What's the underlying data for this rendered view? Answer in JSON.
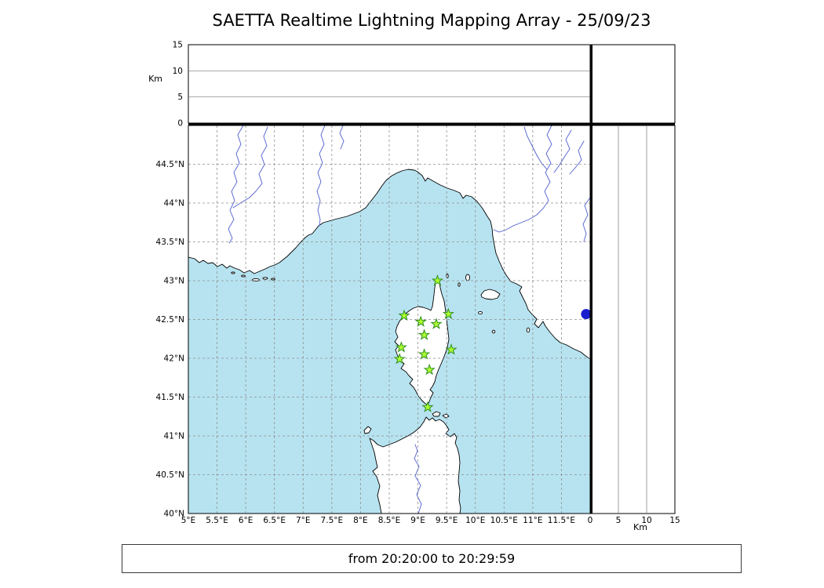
{
  "title": "SAETTA Realtime Lightning Mapping Array - 25/09/23",
  "footer": {
    "time_range": "from 20:20:00 to 20:29:59"
  },
  "axes": {
    "km_label": "Km",
    "km_max": 15,
    "km_ticks": [
      {
        "v": 0,
        "label": "0"
      },
      {
        "v": 5,
        "label": "5"
      },
      {
        "v": 10,
        "label": "10"
      },
      {
        "v": 15,
        "label": "15"
      }
    ],
    "lon_ticks": [
      {
        "v": 5,
        "label": "5°E"
      },
      {
        "v": 5.5,
        "label": "5.5°E"
      },
      {
        "v": 6,
        "label": "6°E"
      },
      {
        "v": 6.5,
        "label": "6.5°E"
      },
      {
        "v": 7,
        "label": "7°E"
      },
      {
        "v": 7.5,
        "label": "7.5°E"
      },
      {
        "v": 8,
        "label": "8°E"
      },
      {
        "v": 8.5,
        "label": "8.5°E"
      },
      {
        "v": 9,
        "label": "9°E"
      },
      {
        "v": 9.5,
        "label": "9.5°E"
      },
      {
        "v": 10,
        "label": "10°E"
      },
      {
        "v": 10.5,
        "label": "10.5°E"
      },
      {
        "v": 11,
        "label": "11°E"
      },
      {
        "v": 11.5,
        "label": "11.5°E"
      }
    ],
    "lat_ticks": [
      {
        "v": 40,
        "label": "40°N"
      },
      {
        "v": 40.5,
        "label": "40.5°N"
      },
      {
        "v": 41,
        "label": "41°N"
      },
      {
        "v": 41.5,
        "label": "41.5°N"
      },
      {
        "v": 42,
        "label": "42°N"
      },
      {
        "v": 42.5,
        "label": "42.5°N"
      },
      {
        "v": 43,
        "label": "43°N"
      },
      {
        "v": 43.5,
        "label": "43.5°N"
      },
      {
        "v": 44,
        "label": "44°N"
      },
      {
        "v": 44.5,
        "label": "44.5°N"
      }
    ]
  },
  "map": {
    "lon_range": [
      5,
      12
    ],
    "lat_range": [
      40,
      45
    ],
    "colors": {
      "sea": "#b7e3f0",
      "land": "#ffffff",
      "coast": "#000000",
      "river": "#4f5fd0",
      "lake": "#1a1ccd",
      "grid": "#8f8f8f",
      "station_fill": "#adff2f",
      "station_edge": "#2f8f1f"
    },
    "lake_marker": {
      "lon": 11.93,
      "lat": 42.57
    },
    "stations": [
      {
        "lon": 9.34,
        "lat": 43.0
      },
      {
        "lon": 8.76,
        "lat": 42.55
      },
      {
        "lon": 9.05,
        "lat": 42.47
      },
      {
        "lon": 9.32,
        "lat": 42.44
      },
      {
        "lon": 9.53,
        "lat": 42.57
      },
      {
        "lon": 9.11,
        "lat": 42.3
      },
      {
        "lon": 8.71,
        "lat": 42.14
      },
      {
        "lon": 9.58,
        "lat": 42.11
      },
      {
        "lon": 8.68,
        "lat": 41.99
      },
      {
        "lon": 9.11,
        "lat": 42.05
      },
      {
        "lon": 9.2,
        "lat": 41.85
      },
      {
        "lon": 9.17,
        "lat": 41.37
      }
    ]
  }
}
